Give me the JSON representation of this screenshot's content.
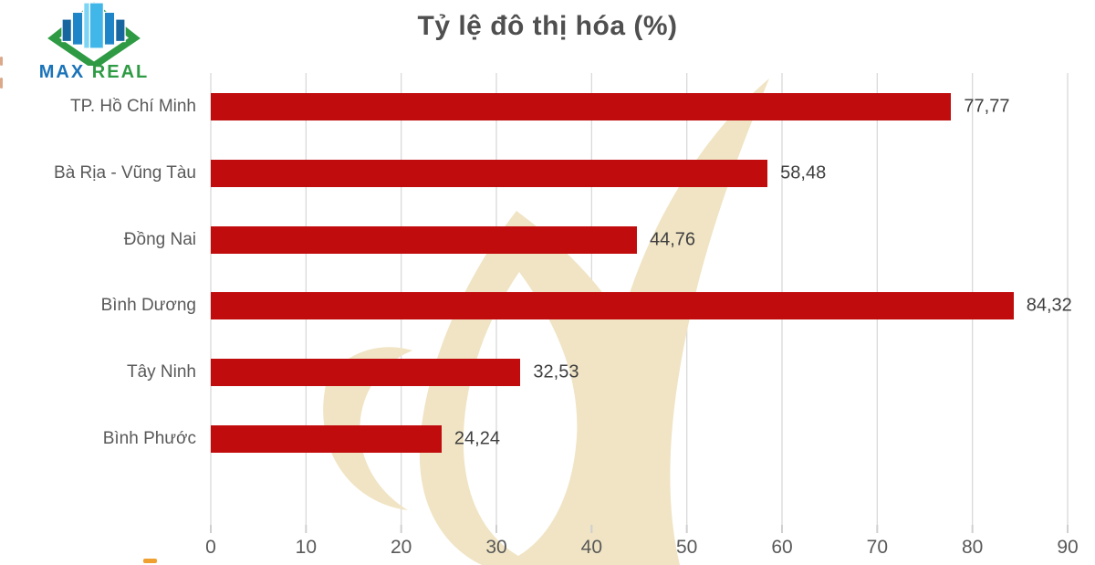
{
  "logo": {
    "max": "MAX",
    "real": "REAL",
    "colors": {
      "diamond_green": "#2e9b44",
      "building_dark": "#1766a0",
      "building_mid": "#1e86c8",
      "building_light": "#41b6e8",
      "building_highlight": "#7dd4f4",
      "max_blue": "#1a73b8",
      "real_green": "#2e9b44"
    }
  },
  "chart_data": {
    "type": "bar",
    "orientation": "horizontal",
    "title": "Tỷ lệ đô thị hóa (%)",
    "categories": [
      "TP. Hồ Chí Minh",
      "Bà Rịa - Vũng Tàu",
      "Đồng Nai",
      "Bình Dương",
      "Tây Ninh",
      "Bình Phước"
    ],
    "values": [
      77.77,
      58.48,
      44.76,
      84.32,
      32.53,
      24.24
    ],
    "value_labels": [
      "77,77",
      "58,48",
      "44,76",
      "84,32",
      "32,53",
      "24,24"
    ],
    "xlabel": "",
    "ylabel": "",
    "xlim": [
      0,
      90
    ],
    "xticks": [
      0,
      10,
      20,
      30,
      40,
      50,
      60,
      70,
      80,
      90
    ],
    "grid": "vertical-only",
    "legend": "none",
    "bar_color": "#c00c0c",
    "gridline_color": "#d9d9d9",
    "tick_color": "#cfcfcf",
    "title_color": "#4f4f4f",
    "label_color": "#595959",
    "value_label_color": "#3f3f3f",
    "tick_label_color": "#595959",
    "watermark_color": "#f0e4c4"
  },
  "decor": {
    "dash_color": "#f0a030",
    "edge_mark_color": "#c87a4a"
  }
}
